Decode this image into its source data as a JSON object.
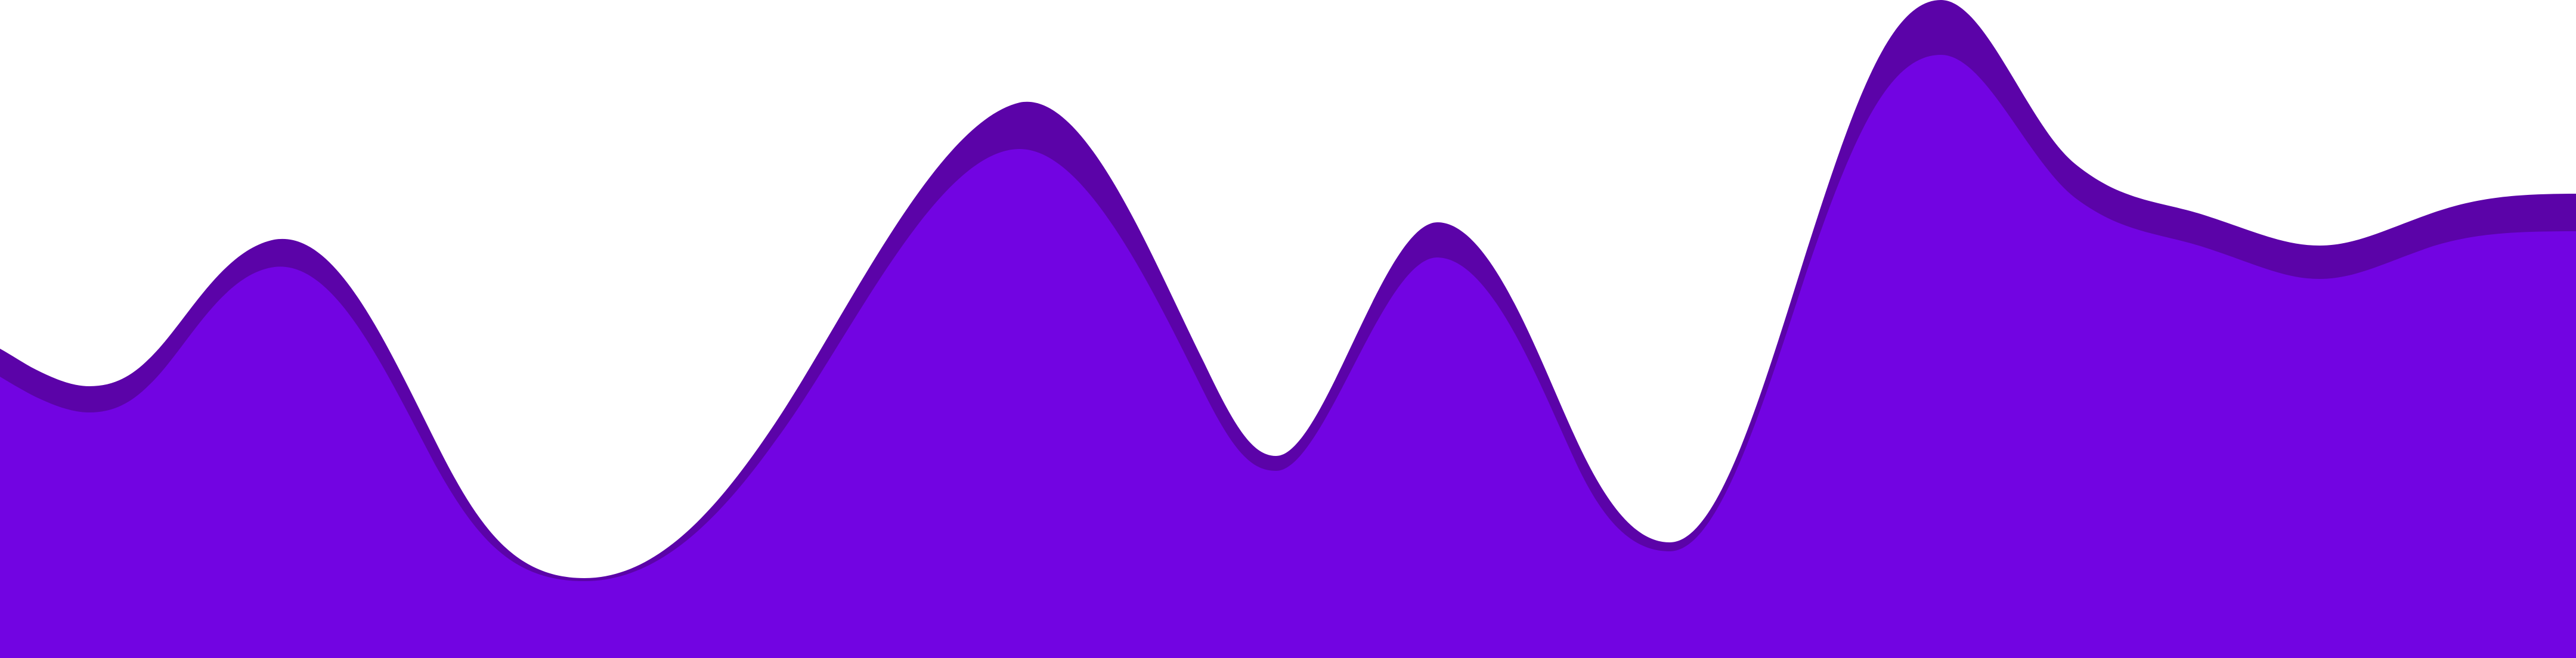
{
  "background_color": "#ffffff",
  "layers": [
    {
      "name": "back-wave",
      "color": "#5b03a8"
    },
    {
      "name": "front-wave",
      "color": "#7204e2"
    }
  ]
}
